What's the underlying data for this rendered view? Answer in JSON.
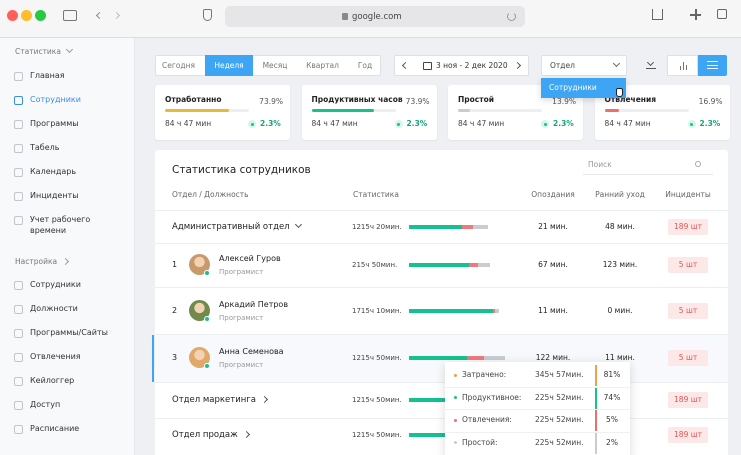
{
  "browser": {
    "url": "google.com"
  },
  "sidebar": {
    "groups": [
      {
        "title": "Статистика",
        "items": [
          "Главная",
          "Сотрудники",
          "Программы",
          "Табель",
          "Календарь",
          "Инциденты",
          "Учет рабочего времени"
        ]
      },
      {
        "title": "Настройка",
        "items": [
          "Сотрудники",
          "Должности",
          "Программы/Сайты",
          "Отвлечения",
          "Кейлоггер",
          "Доступ",
          "Расписание"
        ]
      }
    ]
  },
  "toolbar": {
    "periods": [
      "Сегодня",
      "Неделя",
      "Месяц",
      "Квартал",
      "Год"
    ],
    "date_range": "3 ноя - 2 дек 2020",
    "select": "Отдел",
    "dropdown_options": [
      "Сотрудники"
    ]
  },
  "cards": [
    {
      "title": "Отработанно",
      "percent": "73.9%",
      "time": "84 ч 47 мин",
      "change": "2.3%"
    },
    {
      "title": "Продуктивных часов",
      "percent": "73.9%",
      "time": "84 ч 47 мин",
      "change": "2.3%"
    },
    {
      "title": "Простой",
      "percent": "13.9%",
      "time": "84 ч 47 мин",
      "change": "2.3%"
    },
    {
      "title": "Отвлечения",
      "percent": "16.9%",
      "time": "84 ч 47 мин",
      "change": "2.3%"
    }
  ],
  "table": {
    "title": "Статистика сотрудников",
    "search_placeholder": "Поиск",
    "headers": [
      "Отдел / Должность",
      "Статистика",
      "Опоздания",
      "Ранний уход",
      "Инциденты"
    ],
    "rows": [
      {
        "name": "Административный отдел",
        "stat": "1215ч 20мин.",
        "late": "21 мин.",
        "early": "48 мин.",
        "incidents": "189 шт"
      },
      {
        "number": "1",
        "name": "Алексей Гуров",
        "position": "Програмист",
        "stat": "215ч 50мин.",
        "late": "67 мин.",
        "early": "123 мин.",
        "incidents": "5 шт"
      },
      {
        "number": "2",
        "name": "Аркадий Петров",
        "position": "Програмист",
        "stat": "1715ч 10мин.",
        "late": "11 мин.",
        "early": "0 мин.",
        "incidents": "5 шт"
      },
      {
        "number": "3",
        "name": "Анна Семенова",
        "position": "Програмист",
        "stat": "1215ч 50мин.",
        "late": "122 мин.",
        "early": "11 мин.",
        "incidents": "5 шт"
      },
      {
        "name": "Отдел маркетинга",
        "stat": "1215ч 50мин.",
        "incidents": "189 шт"
      },
      {
        "name": "Отдел продаж",
        "stat": "1215ч 50мин.",
        "incidents": "189 шт"
      }
    ]
  },
  "tooltip": {
    "rows": [
      {
        "label": "Затрачено:",
        "time": "345ч 57мин.",
        "percent": "81%"
      },
      {
        "label": "Продуктивное:",
        "time": "225ч 52мин.",
        "percent": "74%"
      },
      {
        "label": "Отвлечения:",
        "time": "225ч 52мин.",
        "percent": "5%"
      },
      {
        "label": "Простой:",
        "time": "225ч 52мин.",
        "percent": "2%"
      }
    ]
  }
}
